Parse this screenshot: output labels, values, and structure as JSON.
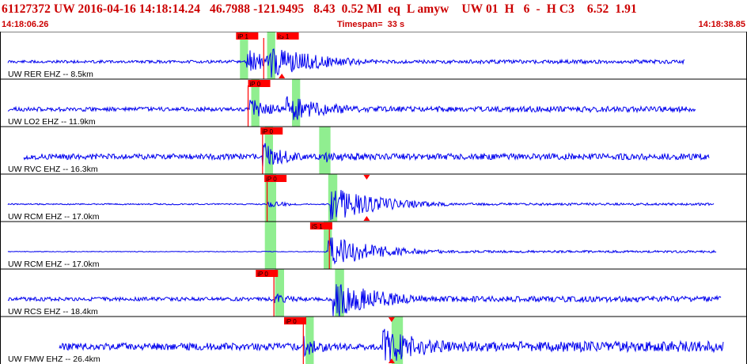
{
  "header": {
    "title": "61127372 UW 2016-04-16 14:18:14.24   46.7988 -121.9495   8.43  0.52 Ml  eq  L amyw    UW 01  H   6  -  H C3    6.52  1.91",
    "start_time": "14:18:06.26",
    "timespan": "Timespan=  33 s",
    "end_time": "14:18:38.85"
  },
  "colors": {
    "header_text": "#cc0000",
    "trace": "#0000ee",
    "pick_marker": "#ff0000",
    "pick_window": "#90ee90",
    "label_text": "#000000",
    "border": "#000000"
  },
  "traces": [
    {
      "label": "UW RER EHZ -- 8.5km",
      "picks": [
        {
          "label": "iP 1",
          "t": 10.43
        },
        {
          "label": "iS 1",
          "t": 12.22
        }
      ],
      "arrival_t": 11.65,
      "shade": [
        {
          "t": 10.6,
          "w": 0.36
        },
        {
          "t": 11.8,
          "w": 0.36
        }
      ],
      "triangle_t": 12.45,
      "onset_t": 10.9,
      "noise": 0.06,
      "p_amp": 0.55,
      "s_amp": 0.75,
      "s_t": 11.9,
      "coda": 0.08,
      "seed": 11,
      "end_t": 31.3
    },
    {
      "label": "UW LO2 EHZ -- 11.9km",
      "picks": [
        {
          "label": "iP 0",
          "t": 10.96
        }
      ],
      "arrival_t": 10.96,
      "shade": [
        {
          "t": 11.1,
          "w": 0.36
        },
        {
          "t": 12.9,
          "w": 0.36
        }
      ],
      "triangle_t": null,
      "onset_t": 11.0,
      "noise": 0.09,
      "p_amp": 0.5,
      "s_amp": 0.6,
      "s_t": 12.5,
      "coda": 0.12,
      "seed": 23,
      "end_t": 31.8
    },
    {
      "label": "UW RVC EHZ -- 16.3km",
      "picks": [
        {
          "label": "iP 0",
          "t": 11.51
        }
      ],
      "arrival_t": 11.6,
      "shade": [
        {
          "t": 11.7,
          "w": 0.36
        },
        {
          "t": 14.1,
          "w": 0.5
        }
      ],
      "triangle_t": null,
      "onset_t": 11.6,
      "noise": 0.12,
      "p_amp": 0.65,
      "s_amp": 0.3,
      "s_t": 14.3,
      "coda": 0.13,
      "seed": 37,
      "end_t": 32.4
    },
    {
      "label": "UW RCM EHZ -- 17.0km",
      "picks": [
        {
          "label": "iP 0",
          "t": 11.68
        }
      ],
      "arrival_t": 11.8,
      "shade": [
        {
          "t": 11.7,
          "w": 0.5
        },
        {
          "t": 14.5,
          "w": 0.4
        }
      ],
      "triangle_t": 16.2,
      "onset_t": 11.8,
      "noise": 0.03,
      "p_amp": 0.15,
      "s_amp": 0.75,
      "s_t": 14.6,
      "coda": 0.05,
      "seed": 41,
      "end_t": 32.6
    },
    {
      "label": "UW RCM EHZ -- 17.0km",
      "picks": [
        {
          "label": "iS 1",
          "t": 13.7
        }
      ],
      "arrival_t": 14.55,
      "shade": [
        {
          "t": 11.7,
          "w": 0.5
        },
        {
          "t": 14.3,
          "w": 0.36
        }
      ],
      "triangle_t": null,
      "onset_t": 14.3,
      "noise": 0.015,
      "p_amp": 0.05,
      "s_amp": 0.7,
      "s_t": 14.5,
      "coda": 0.05,
      "seed": 53,
      "end_t": 32.7
    },
    {
      "label": "UW RCS EHZ -- 18.4km",
      "picks": [
        {
          "label": "iP 0",
          "t": 11.3
        }
      ],
      "arrival_t": 12.1,
      "shade": [
        {
          "t": 12.15,
          "w": 0.4
        },
        {
          "t": 14.8,
          "w": 0.4
        }
      ],
      "triangle_t": null,
      "onset_t": 12.1,
      "noise": 0.08,
      "p_amp": 0.25,
      "s_amp": 0.85,
      "s_t": 14.7,
      "coda": 0.12,
      "seed": 67,
      "end_t": 32.9
    },
    {
      "label": "UW FMW EHZ -- 26.4km",
      "picks": [
        {
          "label": "iP 0",
          "t": 12.55
        }
      ],
      "arrival_t": 13.4,
      "shade": [
        {
          "t": 13.5,
          "w": 0.36
        },
        {
          "t": 17.3,
          "w": 0.5
        }
      ],
      "triangle_t": 17.3,
      "onset_t": 13.3,
      "noise": 0.15,
      "p_amp": 0.5,
      "s_amp": 0.8,
      "s_t": 16.9,
      "coda": 0.22,
      "seed": 79,
      "end_t": 33.0
    }
  ]
}
